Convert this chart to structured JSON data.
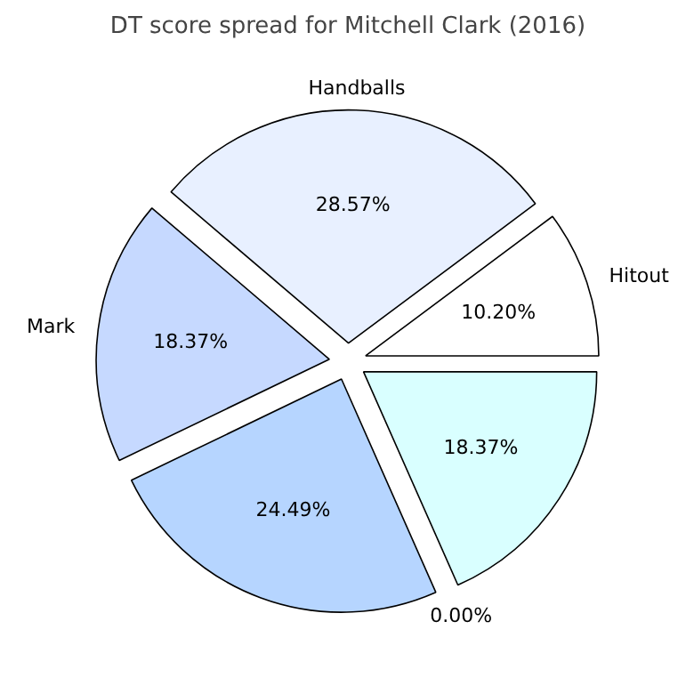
{
  "chart_data": {
    "type": "pie",
    "title": "DT score spread for Mitchell Clark (2016)",
    "categories": [
      "Hitout",
      "Handballs",
      "Mark",
      null,
      null,
      null
    ],
    "values": [
      10.2,
      28.57,
      18.37,
      24.49,
      0.0,
      18.37
    ],
    "colors": [
      "#ffffff",
      "#e8f0ff",
      "#c6d9ff",
      "#b6d5ff",
      "#ffffff",
      "#d9ffff"
    ],
    "value_labels": [
      "10.20%",
      "28.57%",
      "18.37%",
      "24.49%",
      "0.00%",
      "18.37%"
    ]
  }
}
